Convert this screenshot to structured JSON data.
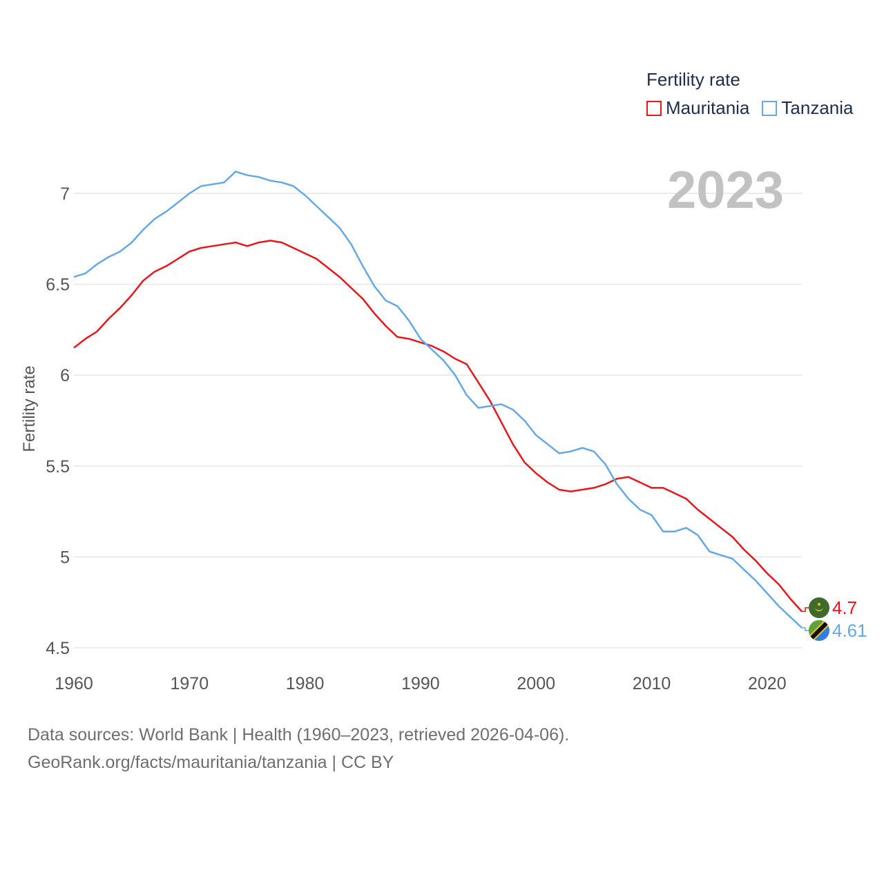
{
  "legend": {
    "title": "Fertility rate",
    "items": [
      {
        "name": "Mauritania",
        "color": "#e8151b"
      },
      {
        "name": "Tanzania",
        "color": "#64a8e6"
      }
    ]
  },
  "year_label": "2023",
  "footer": {
    "line1": "Data sources: World Bank | Health (1960–2023, retrieved 2026-04-06).",
    "line2": "GeoRank.org/facts/mauritania/tanzania | CC BY"
  },
  "chart_data": {
    "type": "line",
    "title": "Fertility rate",
    "xlabel": "",
    "ylabel": "Fertility rate",
    "xlim": [
      1960,
      2023
    ],
    "ylim": [
      4.5,
      7.25
    ],
    "grid": true,
    "legend_position": "top-right",
    "x_ticks": [
      1960,
      1970,
      1980,
      1990,
      2000,
      2010,
      2020
    ],
    "y_ticks": [
      4.5,
      5,
      5.5,
      6,
      6.5,
      7
    ],
    "y_tick_labels": [
      "4.5",
      "5",
      "5.5",
      "6",
      "6.5",
      "7"
    ],
    "x": [
      1960,
      1961,
      1962,
      1963,
      1964,
      1965,
      1966,
      1967,
      1968,
      1969,
      1970,
      1971,
      1972,
      1973,
      1974,
      1975,
      1976,
      1977,
      1978,
      1979,
      1980,
      1981,
      1982,
      1983,
      1984,
      1985,
      1986,
      1987,
      1988,
      1989,
      1990,
      1991,
      1992,
      1993,
      1994,
      1995,
      1996,
      1997,
      1998,
      1999,
      2000,
      2001,
      2002,
      2003,
      2004,
      2005,
      2006,
      2007,
      2008,
      2009,
      2010,
      2011,
      2012,
      2013,
      2014,
      2015,
      2016,
      2017,
      2018,
      2019,
      2020,
      2021,
      2022,
      2023
    ],
    "series": [
      {
        "name": "Mauritania",
        "color": "#e8151b",
        "end_label": "4.7",
        "values": [
          6.15,
          6.2,
          6.24,
          6.31,
          6.37,
          6.44,
          6.52,
          6.57,
          6.6,
          6.64,
          6.68,
          6.7,
          6.71,
          6.72,
          6.73,
          6.71,
          6.73,
          6.74,
          6.73,
          6.7,
          6.67,
          6.64,
          6.59,
          6.54,
          6.48,
          6.42,
          6.34,
          6.27,
          6.21,
          6.2,
          6.18,
          6.16,
          6.13,
          6.09,
          6.06,
          5.96,
          5.86,
          5.74,
          5.62,
          5.52,
          5.46,
          5.41,
          5.37,
          5.36,
          5.37,
          5.38,
          5.4,
          5.43,
          5.44,
          5.41,
          5.38,
          5.38,
          5.35,
          5.32,
          5.26,
          5.21,
          5.16,
          5.11,
          5.04,
          4.98,
          4.91,
          4.85,
          4.77,
          4.7
        ]
      },
      {
        "name": "Tanzania",
        "color": "#64a8e6",
        "end_label": "4.61",
        "values": [
          6.54,
          6.56,
          6.61,
          6.65,
          6.68,
          6.73,
          6.8,
          6.86,
          6.9,
          6.95,
          7.0,
          7.04,
          7.05,
          7.06,
          7.12,
          7.1,
          7.09,
          7.07,
          7.06,
          7.04,
          6.99,
          6.93,
          6.87,
          6.81,
          6.72,
          6.6,
          6.49,
          6.41,
          6.38,
          6.3,
          6.2,
          6.14,
          6.08,
          6.0,
          5.89,
          5.82,
          5.83,
          5.84,
          5.81,
          5.75,
          5.67,
          5.62,
          5.57,
          5.58,
          5.6,
          5.58,
          5.51,
          5.4,
          5.32,
          5.26,
          5.23,
          5.14,
          5.14,
          5.16,
          5.12,
          5.03,
          5.01,
          4.99,
          4.93,
          4.87,
          4.8,
          4.73,
          4.67,
          4.61
        ]
      }
    ]
  }
}
